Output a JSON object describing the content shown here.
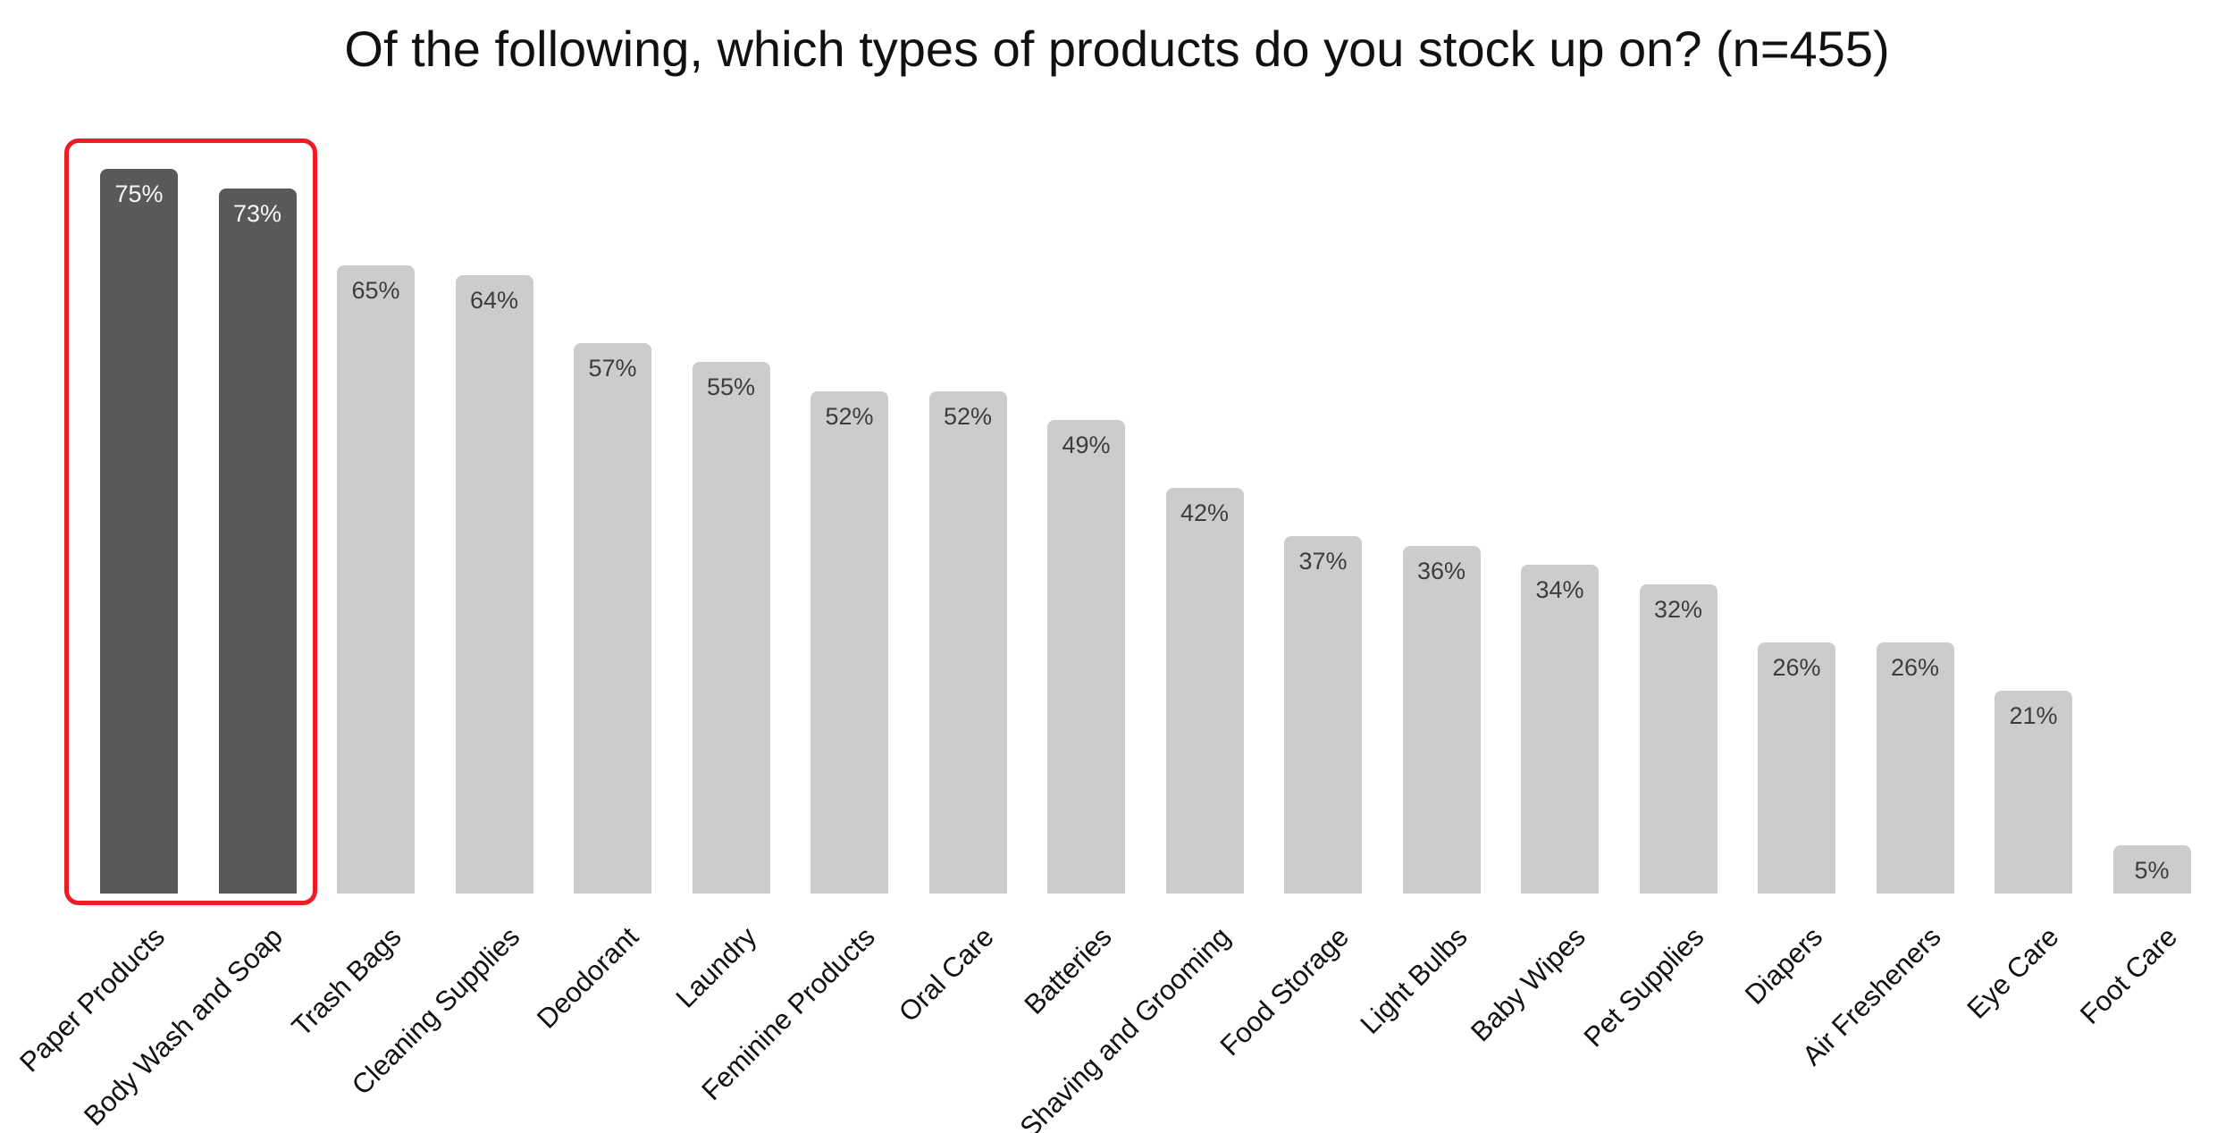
{
  "chart_data": {
    "type": "bar",
    "title": "Of the following, which types of products do you stock up on? (n=455)",
    "categories": [
      "Paper Products",
      "Body Wash and Soap",
      "Trash Bags",
      "Cleaning Supplies",
      "Deodorant",
      "Laundry",
      "Feminine Products",
      "Oral Care",
      "Batteries",
      "Shaving and Grooming",
      "Food Storage",
      "Light Bulbs",
      "Baby Wipes",
      "Pet Supplies",
      "Diapers",
      "Air Fresheners",
      "Eye Care",
      "Foot Care"
    ],
    "values": [
      75,
      73,
      65,
      64,
      57,
      55,
      52,
      52,
      49,
      42,
      37,
      36,
      34,
      32,
      26,
      26,
      21,
      5
    ],
    "value_labels": [
      "75%",
      "73%",
      "65%",
      "64%",
      "57%",
      "55%",
      "52%",
      "52%",
      "49%",
      "42%",
      "37%",
      "36%",
      "34%",
      "32%",
      "26%",
      "26%",
      "21%",
      "5%"
    ],
    "value_suffix": "%",
    "highlighted_categories": [
      "Paper Products",
      "Body Wash and Soap"
    ],
    "highlight_box": true,
    "xlabel": "",
    "ylabel": "",
    "ylim": [
      0,
      100
    ],
    "grid": false,
    "axes_visible": false,
    "legend": null,
    "colors": {
      "bar": "#cccccc",
      "bar_highlighted": "#595959",
      "value_label_on_light": "#3d3d3d",
      "value_label_on_dark": "#f7f7f7",
      "highlight_box_border": "#ee1c24",
      "title_text": "#111111",
      "category_label_text": "#111111",
      "background": "#ffffff"
    }
  }
}
